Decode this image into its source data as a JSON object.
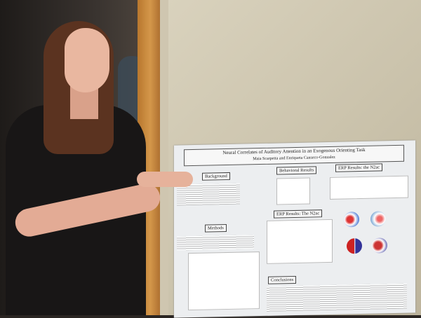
{
  "poster": {
    "title": "Neural Correlates of Auditory Attention in an Exogenous Orienting Task",
    "authors": "Maia Scarpetta and Enriqueta Canseco-Gonzalez",
    "sections": {
      "background": "Background",
      "behavioral": "Behavioral Results",
      "erp_n2ac_top": "ERP Results: the N2ac",
      "erp_n2ac_mid": "ERP Results: The N2ac",
      "methods": "Methods",
      "conclusions": "Conclusions"
    }
  },
  "colors": {
    "door": "#d4974a",
    "wall": "#d9d2bd",
    "poster": "#eceef0",
    "hair": "#5b3320",
    "jacket": "#181616"
  }
}
